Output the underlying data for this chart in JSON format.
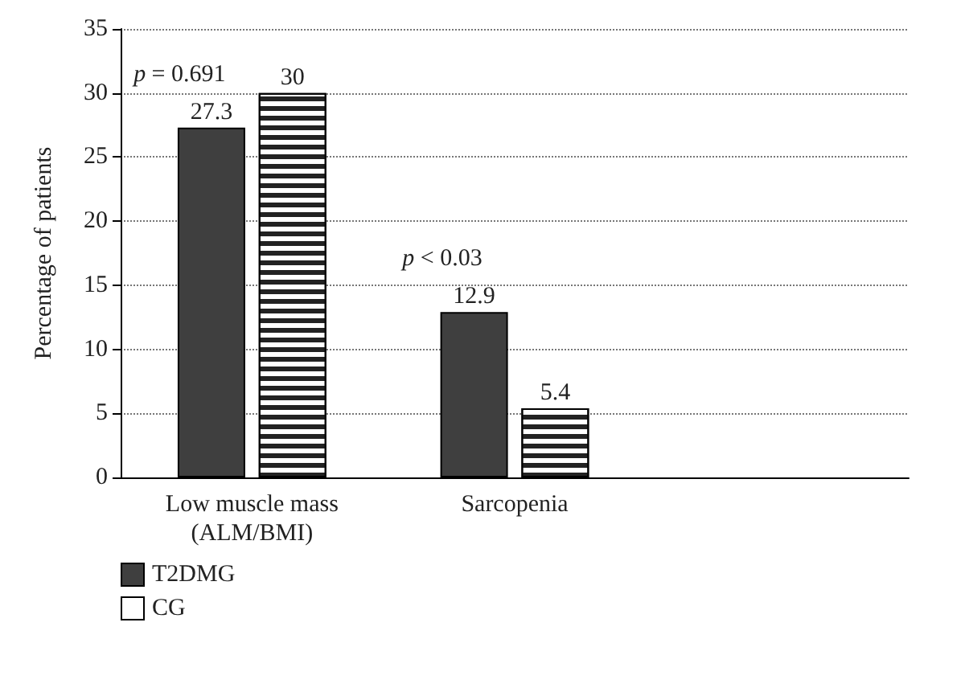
{
  "chart_data": {
    "type": "bar",
    "ylabel": "Percentage of patients",
    "categories": [
      "Low muscle mass\n(ALM/BMI)",
      "Sarcopenia",
      null
    ],
    "series": [
      {
        "name": "T2DMG",
        "color": "#3f3f3f",
        "values": [
          27.3,
          12.9,
          null
        ]
      },
      {
        "name": "CG",
        "color": "#ffffff",
        "values": [
          30,
          5.4,
          null
        ]
      }
    ],
    "ylim": [
      0,
      35
    ],
    "yticks": [
      0,
      5,
      10,
      15,
      20,
      25,
      30,
      35
    ],
    "grid": "y",
    "legend": "bottom left",
    "data_labels": true,
    "annotations": [
      "p = 0.691",
      "p < 0.03"
    ]
  }
}
